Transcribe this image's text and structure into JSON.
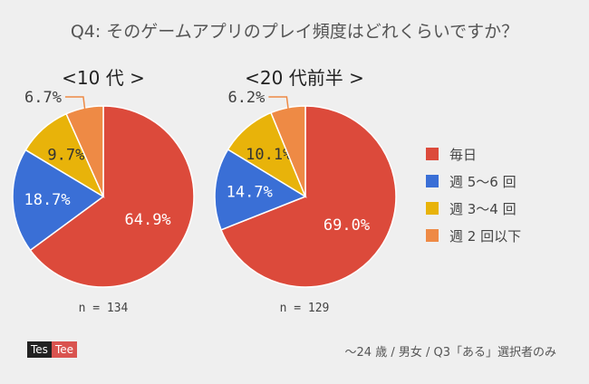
{
  "title": "Q4: そのゲームアプリのプレイ頻度はどれくらいですか？",
  "legend": [
    {
      "label": "毎日",
      "color": "#dc4a3b"
    },
    {
      "label": "週 5〜6 回",
      "color": "#3a6fd6"
    },
    {
      "label": "週 3〜4 回",
      "color": "#e8b30a"
    },
    {
      "label": "週 2 回以下",
      "color": "#ee8a45"
    }
  ],
  "chart_data": [
    {
      "type": "pie",
      "title": "<10 代 >",
      "categories": [
        "毎日",
        "週 5〜6 回",
        "週 3〜4 回",
        "週 2 回以下"
      ],
      "values": [
        64.9,
        18.7,
        9.7,
        6.7
      ],
      "value_labels": [
        "64.9%",
        "18.7%",
        "9.7%",
        "6.7%"
      ],
      "n_label": "n = 134"
    },
    {
      "type": "pie",
      "title": "<20 代前半 >",
      "categories": [
        "毎日",
        "週 5〜6 回",
        "週 3〜4 回",
        "週 2 回以下"
      ],
      "values": [
        69.0,
        14.7,
        10.1,
        6.2
      ],
      "value_labels": [
        "69.0%",
        "14.7%",
        "10.1%",
        "6.2%"
      ],
      "n_label": "n = 129"
    }
  ],
  "logo": {
    "left": "Tes",
    "right": "Tee"
  },
  "footnote": "〜24 歳 / 男女 / Q3「ある」選択者のみ"
}
